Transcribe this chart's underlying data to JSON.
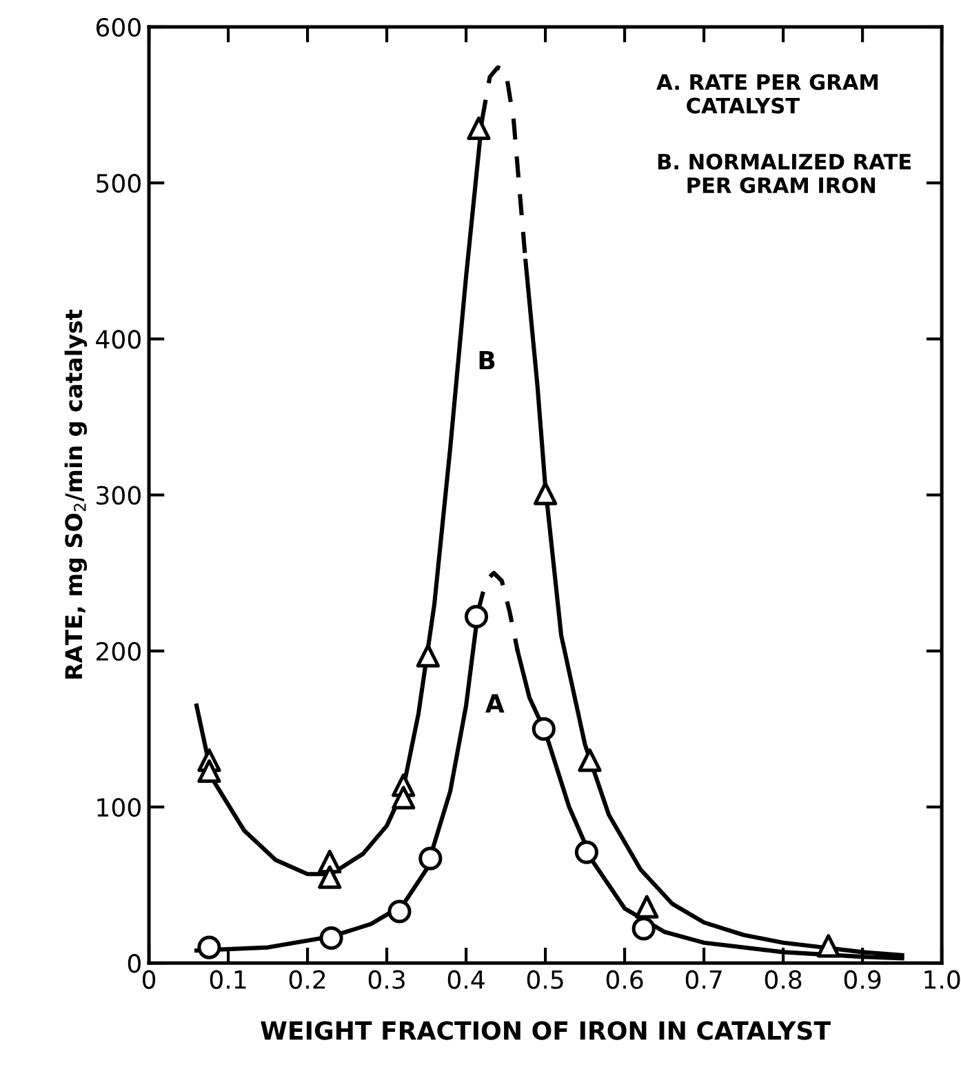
{
  "chart_data": {
    "type": "scatter",
    "xlabel": "WEIGHT FRACTION OF IRON IN CATALYST",
    "ylabel": "RATE, mg SO$_{2}$/min g catalyst",
    "xlim": [
      0,
      1.0
    ],
    "ylim": [
      0,
      600
    ],
    "xticks": [
      0,
      0.1,
      0.2,
      0.3,
      0.4,
      0.5,
      0.6,
      0.7,
      0.8,
      0.9,
      {
        "value": 1.0,
        "label": "1.0"
      }
    ],
    "yticks": [
      0,
      100,
      200,
      300,
      400,
      500,
      600
    ],
    "grid": false,
    "series": [
      {
        "marker": "triangle",
        "color": "#000000",
        "x": [
          0.076,
          0.076,
          0.228,
          0.228,
          0.321,
          0.321,
          0.352,
          0.416,
          0.5,
          0.556,
          0.628,
          0.857
        ],
        "values": [
          130,
          123,
          65,
          55,
          114,
          106,
          197,
          535,
          301,
          130,
          36,
          11
        ]
      },
      {
        "marker": "circle",
        "color": "#000000",
        "x": [
          0.076,
          0.23,
          0.316,
          0.355,
          0.413,
          0.498,
          0.552,
          0.624
        ],
        "values": [
          10,
          16,
          33,
          67,
          222,
          150,
          71,
          22
        ]
      },
      {
        "type": "line",
        "line_style": "solid",
        "color": "#000000",
        "x": [
          0.06,
          0.08,
          0.12,
          0.16,
          0.2,
          0.23,
          0.27,
          0.3,
          0.32,
          0.34,
          0.36,
          0.38,
          0.4,
          0.42
        ],
        "values": [
          165,
          118,
          85,
          66,
          57,
          57,
          70,
          88,
          110,
          160,
          230,
          330,
          440,
          540
        ]
      },
      {
        "type": "line",
        "line_style": "dashed",
        "color": "#000000",
        "x": [
          0.42,
          0.43,
          0.44,
          0.45,
          0.46,
          0.47,
          0.475
        ],
        "values": [
          540,
          568,
          574,
          572,
          540,
          480,
          450
        ]
      },
      {
        "type": "line",
        "line_style": "solid",
        "color": "#000000",
        "x": [
          0.475,
          0.49,
          0.5,
          0.52,
          0.55,
          0.58,
          0.62,
          0.66,
          0.7,
          0.75,
          0.8,
          0.85,
          0.9,
          0.95
        ],
        "values": [
          450,
          370,
          305,
          210,
          140,
          95,
          60,
          38,
          26,
          18,
          13,
          10,
          7,
          5
        ]
      },
      {
        "type": "line",
        "line_style": "solid",
        "color": "#000000",
        "x": [
          0.06,
          0.15,
          0.23,
          0.28,
          0.32,
          0.35,
          0.38,
          0.4,
          0.415
        ],
        "values": [
          8,
          10,
          17,
          25,
          37,
          60,
          110,
          165,
          225
        ]
      },
      {
        "type": "line",
        "line_style": "dashed",
        "color": "#000000",
        "x": [
          0.415,
          0.425,
          0.435,
          0.445,
          0.455,
          0.465
        ],
        "values": [
          225,
          245,
          250,
          245,
          225,
          200
        ]
      },
      {
        "type": "line",
        "line_style": "solid",
        "color": "#000000",
        "x": [
          0.465,
          0.48,
          0.5,
          0.53,
          0.56,
          0.6,
          0.65,
          0.7,
          0.8,
          0.9,
          0.95
        ],
        "values": [
          200,
          170,
          148,
          100,
          65,
          35,
          20,
          13,
          7,
          4,
          3
        ]
      }
    ],
    "annotations": [
      {
        "text": "B",
        "x": 0.39,
        "y": 385
      },
      {
        "text": "A",
        "x": 0.4,
        "y": 165
      },
      "A. RATE PER GRAM\n    CATALYST",
      "B. NORMALIZED RATE\n    PER GRAM IRON"
    ]
  }
}
